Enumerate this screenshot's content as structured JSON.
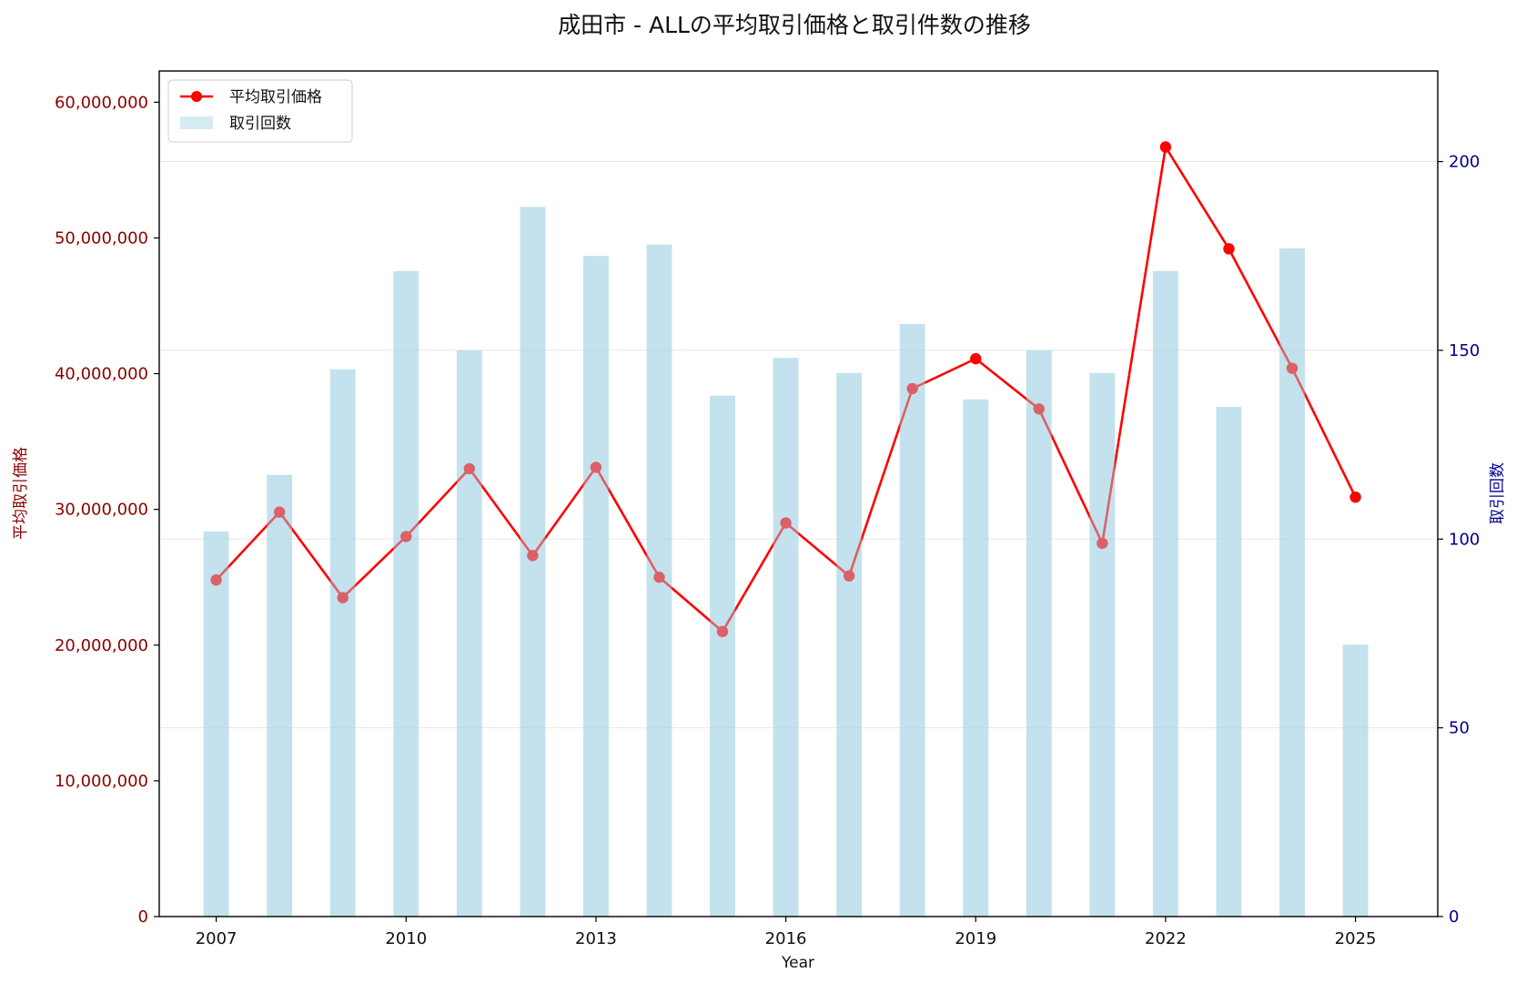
{
  "chart_data": {
    "type": "bar+line",
    "title": "成田市 - ALLの平均取引価格と取引件数の推移",
    "xlabel": "Year",
    "ylabel_left": "平均取引価格",
    "ylabel_right": "取引回数",
    "x": [
      2007,
      2008,
      2009,
      2010,
      2011,
      2012,
      2013,
      2014,
      2015,
      2016,
      2017,
      2018,
      2019,
      2020,
      2021,
      2022,
      2023,
      2024,
      2025
    ],
    "x_ticks": [
      2007,
      2010,
      2013,
      2016,
      2019,
      2022,
      2025
    ],
    "xlim": [
      2006.1,
      2026.3
    ],
    "ylim_left": [
      0,
      62300000
    ],
    "ylim_right": [
      0,
      224
    ],
    "y_ticks_left": [
      0,
      10000000,
      20000000,
      30000000,
      40000000,
      50000000,
      60000000
    ],
    "y_ticks_left_labels": [
      "0",
      "10,000,000",
      "20,000,000",
      "30,000,000",
      "40,000,000",
      "50,000,000",
      "60,000,000"
    ],
    "y_ticks_right": [
      0,
      50,
      100,
      150,
      200
    ],
    "y_ticks_right_labels": [
      "0",
      "50",
      "100",
      "150",
      "200"
    ],
    "grid": "horizontal-right-axis",
    "legend_position": "top-left",
    "series": [
      {
        "name": "平均取引価格",
        "type": "line",
        "axis": "left",
        "color": "#ff0000",
        "values": [
          24800000,
          29800000,
          23500000,
          28000000,
          33000000,
          26600000,
          33100000,
          25000000,
          21000000,
          29000000,
          25100000,
          38900000,
          41100000,
          37400000,
          27500000,
          56700000,
          49200000,
          40400000,
          30900000
        ]
      },
      {
        "name": "取引回数",
        "type": "bar",
        "axis": "right",
        "color": "#add8e6",
        "values": [
          102,
          117,
          145,
          171,
          150,
          188,
          175,
          178,
          138,
          148,
          144,
          157,
          137,
          150,
          144,
          171,
          135,
          177,
          72
        ]
      }
    ],
    "colors": {
      "left_axis": "#8b0000",
      "right_axis": "#00008b",
      "bar_fill": "#add8e6",
      "line": "#ff0000"
    }
  }
}
